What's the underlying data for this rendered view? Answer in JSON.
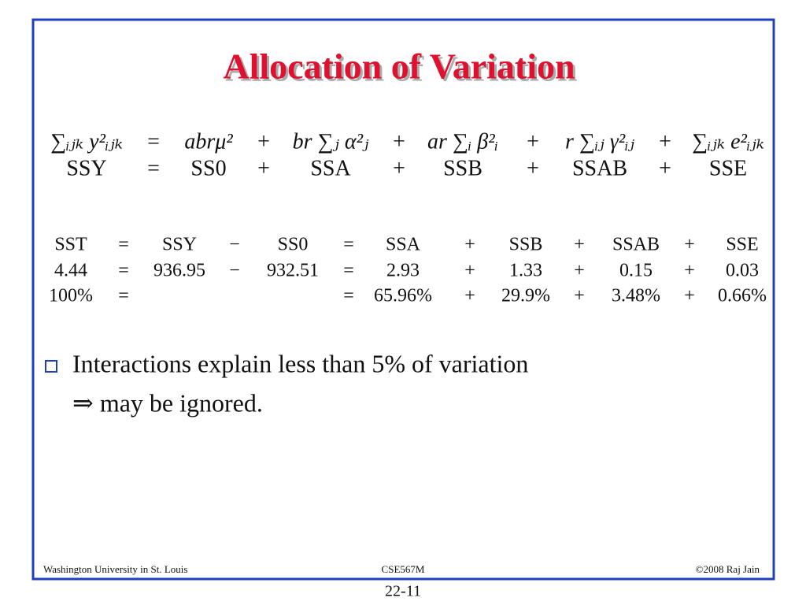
{
  "title": "Allocation of Variation",
  "equation": {
    "rows": [
      [
        "∑ᵢⱼₖ y²ᵢⱼₖ",
        "=",
        "abrμ²",
        "+",
        "br ∑ⱼ α²ⱼ",
        "+",
        "ar ∑ᵢ β²ᵢ",
        "+",
        "r ∑ᵢⱼ γ²ᵢⱼ",
        "+",
        "∑ᵢⱼₖ e²ᵢⱼₖ"
      ],
      [
        "SSY",
        "=",
        "SS0",
        "+",
        "SSA",
        "+",
        "SSB",
        "+",
        "SSAB",
        "+",
        "SSE"
      ]
    ]
  },
  "table": {
    "rows": [
      [
        "SST",
        "=",
        "SSY",
        "−",
        "SS0",
        "=",
        "SSA",
        "+",
        "SSB",
        "+",
        "SSAB",
        "+",
        "SSE"
      ],
      [
        "4.44",
        "=",
        "936.95",
        "−",
        "932.51",
        "=",
        "2.93",
        "+",
        "1.33",
        "+",
        "0.15",
        "+",
        "0.03"
      ],
      [
        "100%",
        "=",
        null,
        null,
        null,
        "=",
        "65.96%",
        "+",
        "29.9%",
        "+",
        "3.48%",
        "+",
        "0.66%"
      ]
    ]
  },
  "bullets": [
    "Interactions explain less than 5% of variation",
    "⇒ may be ignored."
  ],
  "footer": {
    "left": "Washington University in St. Louis",
    "center": "CSE567M",
    "right": "©2008 Raj Jain"
  },
  "page_number": "22-11"
}
